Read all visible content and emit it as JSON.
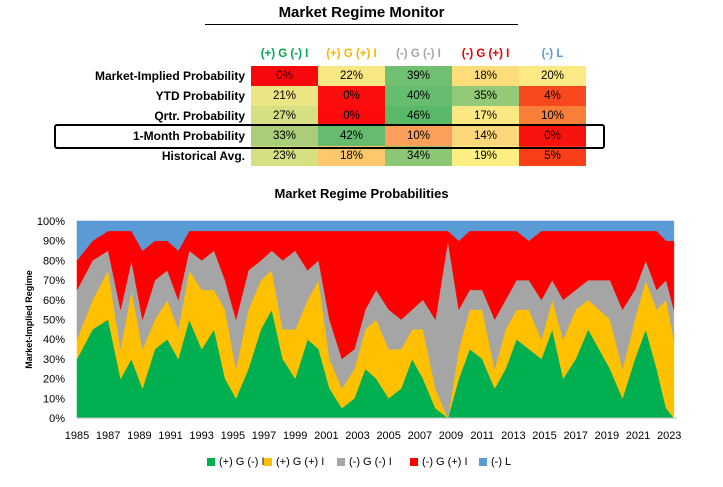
{
  "page": {
    "title": "Market Regime Monitor"
  },
  "table": {
    "columns": [
      {
        "label": "(+) G (-) I",
        "color": "#00a651"
      },
      {
        "label": "(+) G (+) I",
        "color": "#f5b800"
      },
      {
        "label": "(-) G (-) I",
        "color": "#a6a6a6"
      },
      {
        "label": "(-) G (+) I",
        "color": "#e00000"
      },
      {
        "label": "(-) L",
        "color": "#5b9bd5"
      }
    ],
    "rows": [
      {
        "label": "Market-Implied Probability",
        "values": [
          "0%",
          "22%",
          "39%",
          "18%",
          "20%"
        ],
        "colors": [
          "#f8070c",
          "#f7e883",
          "#71c072",
          "#fddc7a",
          "#fbe983"
        ]
      },
      {
        "label": "YTD Probability",
        "values": [
          "21%",
          "0%",
          "40%",
          "35%",
          "4%"
        ],
        "colors": [
          "#ebe583",
          "#fb0e0c",
          "#66bc6f",
          "#94c978",
          "#f9471e"
        ]
      },
      {
        "label": "Qrtr. Probability",
        "values": [
          "27%",
          "0%",
          "46%",
          "17%",
          "10%"
        ],
        "colors": [
          "#d6df81",
          "#fc0a0c",
          "#5ab869",
          "#fbe883",
          "#f97f39"
        ]
      },
      {
        "label": "1-Month Probability",
        "values": [
          "33%",
          "42%",
          "10%",
          "14%",
          "0%"
        ],
        "colors": [
          "#aacd79",
          "#66bc6e",
          "#fba05a",
          "#fbd67a",
          "#f8120d"
        ]
      },
      {
        "label": "Historical Avg.",
        "values": [
          "23%",
          "18%",
          "34%",
          "19%",
          "5%"
        ],
        "colors": [
          "#d6df81",
          "#fdc86c",
          "#8cc775",
          "#fdee82",
          "#f93e1a"
        ]
      }
    ]
  },
  "chart_data": {
    "type": "area",
    "title": "Market Regime Probabilities",
    "ylabel": "Market-Implied Regime",
    "xlabel": "",
    "x_ticks": [
      "1985",
      "1987",
      "1989",
      "1991",
      "1993",
      "1995",
      "1997",
      "1999",
      "2001",
      "2003",
      "2005",
      "2007",
      "2009",
      "2011",
      "2013",
      "2015",
      "2017",
      "2019",
      "2021",
      "2023"
    ],
    "y_ticks": [
      "0%",
      "10%",
      "20%",
      "30%",
      "40%",
      "50%",
      "60%",
      "70%",
      "80%",
      "90%",
      "100%"
    ],
    "ylim": [
      0,
      100
    ],
    "xlim": [
      1985,
      2023.5
    ],
    "stacked": true,
    "x": [
      1985.0,
      1986.0,
      1987.0,
      1987.8,
      1988.5,
      1989.2,
      1990.0,
      1990.8,
      1991.5,
      1992.2,
      1993.0,
      1993.8,
      1994.5,
      1995.2,
      1996.0,
      1996.8,
      1997.5,
      1998.2,
      1999.0,
      1999.8,
      2000.5,
      2001.2,
      2002.0,
      2002.8,
      2003.5,
      2004.2,
      2005.0,
      2005.8,
      2006.5,
      2007.2,
      2008.0,
      2008.8,
      2009.5,
      2010.2,
      2011.0,
      2011.8,
      2012.5,
      2013.2,
      2014.0,
      2014.8,
      2015.5,
      2016.2,
      2017.0,
      2017.8,
      2018.5,
      2019.2,
      2020.0,
      2020.8,
      2021.5,
      2022.2,
      2022.8,
      2023.3
    ],
    "series": [
      {
        "name": "(+) G (-) I",
        "color": "#00b050",
        "values": [
          30,
          45,
          50,
          20,
          30,
          15,
          35,
          40,
          30,
          50,
          35,
          45,
          20,
          10,
          25,
          45,
          55,
          30,
          20,
          40,
          35,
          15,
          5,
          10,
          25,
          20,
          10,
          15,
          30,
          20,
          5,
          0,
          20,
          35,
          30,
          15,
          25,
          40,
          35,
          30,
          45,
          20,
          30,
          45,
          35,
          25,
          10,
          30,
          45,
          25,
          5,
          0
        ]
      },
      {
        "name": "(+) G (+) I",
        "color": "#ffc000",
        "values": [
          10,
          15,
          25,
          15,
          35,
          20,
          15,
          20,
          15,
          25,
          30,
          20,
          35,
          15,
          30,
          25,
          20,
          15,
          25,
          20,
          35,
          15,
          10,
          15,
          20,
          30,
          25,
          20,
          15,
          25,
          10,
          0,
          15,
          20,
          25,
          10,
          20,
          15,
          20,
          10,
          15,
          20,
          25,
          15,
          20,
          25,
          15,
          20,
          25,
          30,
          55,
          40
        ]
      },
      {
        "name": "(-) G (-) I",
        "color": "#a5a5a5",
        "values": [
          25,
          20,
          10,
          20,
          15,
          15,
          20,
          15,
          15,
          10,
          15,
          20,
          15,
          25,
          20,
          10,
          10,
          35,
          40,
          15,
          10,
          20,
          15,
          10,
          10,
          15,
          20,
          15,
          10,
          15,
          35,
          90,
          20,
          10,
          10,
          25,
          15,
          15,
          15,
          20,
          10,
          20,
          10,
          10,
          15,
          20,
          30,
          15,
          10,
          10,
          10,
          15
        ]
      },
      {
        "name": "(-) G (+) I",
        "color": "#ff0000",
        "values": [
          15,
          10,
          10,
          40,
          15,
          35,
          20,
          15,
          25,
          10,
          15,
          10,
          25,
          45,
          20,
          15,
          10,
          15,
          10,
          20,
          15,
          45,
          65,
          60,
          40,
          30,
          40,
          45,
          40,
          35,
          45,
          5,
          35,
          30,
          30,
          45,
          35,
          25,
          20,
          35,
          25,
          35,
          30,
          25,
          25,
          25,
          40,
          30,
          15,
          30,
          20,
          35
        ]
      },
      {
        "name": "(-) L",
        "color": "#5b9bd5",
        "values": [
          20,
          10,
          5,
          5,
          5,
          15,
          10,
          10,
          15,
          5,
          5,
          5,
          5,
          5,
          5,
          5,
          5,
          5,
          5,
          5,
          5,
          5,
          5,
          5,
          5,
          5,
          5,
          5,
          5,
          5,
          5,
          5,
          10,
          5,
          5,
          5,
          5,
          5,
          10,
          5,
          5,
          5,
          5,
          5,
          5,
          5,
          5,
          5,
          5,
          5,
          10,
          10
        ]
      }
    ],
    "grid": true,
    "legend": "bottom"
  }
}
